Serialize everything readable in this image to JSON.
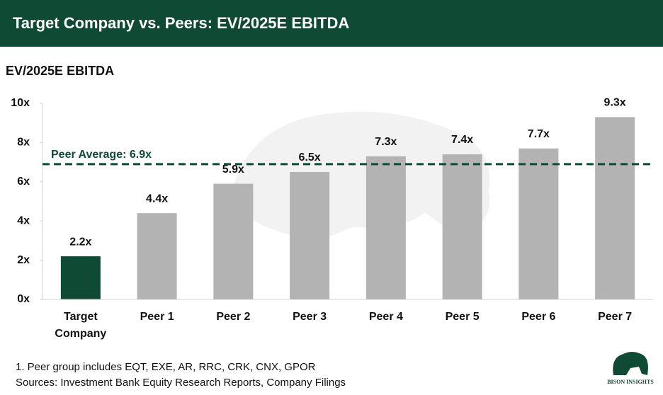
{
  "header": {
    "title": "Target Company vs. Peers: EV/2025E EBITDA"
  },
  "chart_data": {
    "type": "bar",
    "title": "EV/2025E EBITDA",
    "categories": [
      "Target Company",
      "Peer 1",
      "Peer 2",
      "Peer 3",
      "Peer 4",
      "Peer 5",
      "Peer 6",
      "Peer 7"
    ],
    "values": [
      2.2,
      4.4,
      5.9,
      6.5,
      7.3,
      7.4,
      7.7,
      9.3
    ],
    "value_labels": [
      "2.2x",
      "4.4x",
      "5.9x",
      "6.5x",
      "7.3x",
      "7.4x",
      "7.7x",
      "9.3x"
    ],
    "colors": [
      "#0f4a34",
      "#b3b3b3",
      "#b3b3b3",
      "#b3b3b3",
      "#b3b3b3",
      "#b3b3b3",
      "#b3b3b3",
      "#b3b3b3"
    ],
    "ylim": [
      0,
      10
    ],
    "yticks": [
      {
        "value": 0,
        "label": "0x"
      },
      {
        "value": 2,
        "label": "2x"
      },
      {
        "value": 4,
        "label": "4x"
      },
      {
        "value": 6,
        "label": "6x"
      },
      {
        "value": 8,
        "label": "8x"
      },
      {
        "value": 10,
        "label": "10x"
      }
    ],
    "reference_line": {
      "value": 6.9,
      "label": "Peer Average: 6.9x",
      "color": "#0f4a34"
    },
    "grid": false
  },
  "footnotes": [
    "1. Peer group includes EQT, EXE, AR, RRC, CRK, CNX, GPOR",
    "Sources: Investment Bank Equity Research Reports, Company Filings"
  ],
  "logo": {
    "text": "BISON INSIGHTS"
  }
}
